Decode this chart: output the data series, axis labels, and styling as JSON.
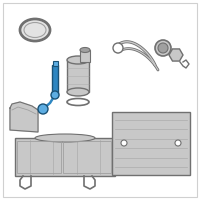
{
  "bg_color": "#ffffff",
  "border_color": "#d0d0d0",
  "part_edge": "#707070",
  "part_fill": "#c8c8c8",
  "part_dark": "#505050",
  "part_mid": "#a0a0a0",
  "hl_blue": "#2e86c1",
  "hl_blue_light": "#5dade2",
  "hl_blue_dark": "#1a5276",
  "figsize": [
    2.0,
    2.0
  ],
  "dpi": 100
}
